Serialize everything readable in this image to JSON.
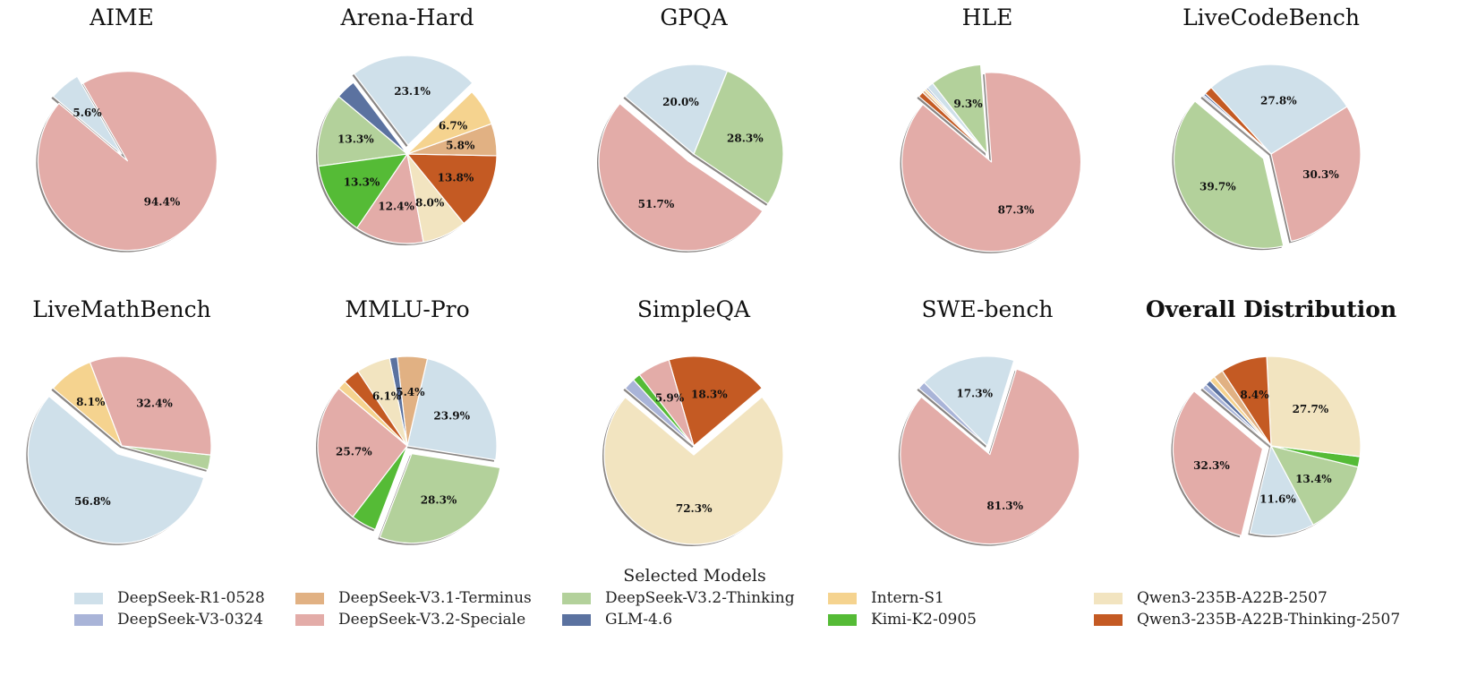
{
  "chart_data": {
    "type": "pie",
    "legend": {
      "title": "Selected Models",
      "placement": "bottom",
      "entries": [
        {
          "name": "DeepSeek-R1-0528",
          "color": "#cfe0ea"
        },
        {
          "name": "DeepSeek-V3-0324",
          "color": "#a9b4d8"
        },
        {
          "name": "DeepSeek-V3.1-Terminus",
          "color": "#e1b183"
        },
        {
          "name": "DeepSeek-V3.2-Speciale",
          "color": "#e3aca8"
        },
        {
          "name": "DeepSeek-V3.2-Thinking",
          "color": "#b3d19b"
        },
        {
          "name": "GLM-4.6",
          "color": "#5b72a0"
        },
        {
          "name": "Intern-S1",
          "color": "#f5d38f"
        },
        {
          "name": "Kimi-K2-0905",
          "color": "#55bb36"
        },
        {
          "name": "Qwen3-235B-A22B-2507",
          "color": "#f2e4c0"
        },
        {
          "name": "Qwen3-235B-A22B-Thinking-2507",
          "color": "#c45a23"
        }
      ]
    },
    "label_format": "percent, 1 decimal, shown for slices >= 5%",
    "exploded": "largest slice",
    "shadow": true,
    "pies": [
      {
        "title": "AIME",
        "slices": [
          {
            "model": "DeepSeek-V3.2-Speciale",
            "value": 94.4
          },
          {
            "model": "DeepSeek-R1-0528",
            "value": 5.6
          }
        ]
      },
      {
        "title": "Arena-Hard",
        "slices": [
          {
            "model": "DeepSeek-V3.2-Thinking",
            "value": 13.3
          },
          {
            "model": "Kimi-K2-0905",
            "value": 13.3
          },
          {
            "model": "DeepSeek-V3.2-Speciale",
            "value": 12.4
          },
          {
            "model": "Qwen3-235B-A22B-2507",
            "value": 8.0
          },
          {
            "model": "Qwen3-235B-A22B-Thinking-2507",
            "value": 13.8
          },
          {
            "model": "DeepSeek-V3.1-Terminus",
            "value": 5.8
          },
          {
            "model": "Intern-S1",
            "value": 6.7
          },
          {
            "model": "DeepSeek-R1-0528",
            "value": 23.1
          },
          {
            "model": "GLM-4.6",
            "value": 3.6
          }
        ]
      },
      {
        "title": "GPQA",
        "slices": [
          {
            "model": "DeepSeek-V3.2-Speciale",
            "value": 51.7
          },
          {
            "model": "DeepSeek-V3.2-Thinking",
            "value": 28.3
          },
          {
            "model": "DeepSeek-R1-0528",
            "value": 20.0
          }
        ]
      },
      {
        "title": "HLE",
        "slices": [
          {
            "model": "DeepSeek-V3.2-Speciale",
            "value": 87.3
          },
          {
            "model": "DeepSeek-V3.2-Thinking",
            "value": 9.3
          },
          {
            "model": "DeepSeek-R1-0528",
            "value": 1.2
          },
          {
            "model": "GLM-4.6",
            "value": 0.3
          },
          {
            "model": "Intern-S1",
            "value": 0.4
          },
          {
            "model": "DeepSeek-V3.1-Terminus",
            "value": 0.5
          },
          {
            "model": "Qwen3-235B-A22B-Thinking-2507",
            "value": 1.0
          }
        ]
      },
      {
        "title": "LiveCodeBench",
        "slices": [
          {
            "model": "DeepSeek-V3.2-Thinking",
            "value": 39.7
          },
          {
            "model": "DeepSeek-V3.2-Speciale",
            "value": 30.3
          },
          {
            "model": "DeepSeek-R1-0528",
            "value": 27.8
          },
          {
            "model": "Qwen3-235B-A22B-Thinking-2507",
            "value": 1.5
          },
          {
            "model": "GLM-4.6",
            "value": 0.4
          },
          {
            "model": "DeepSeek-V3-0324",
            "value": 0.3
          }
        ]
      },
      {
        "title": "LiveMathBench",
        "slices": [
          {
            "model": "DeepSeek-R1-0528",
            "value": 56.8
          },
          {
            "model": "DeepSeek-V3.2-Thinking",
            "value": 2.7
          },
          {
            "model": "DeepSeek-V3.2-Speciale",
            "value": 32.4
          },
          {
            "model": "Intern-S1",
            "value": 8.1
          }
        ]
      },
      {
        "title": "MMLU-Pro",
        "slices": [
          {
            "model": "DeepSeek-V3.2-Speciale",
            "value": 25.7
          },
          {
            "model": "Kimi-K2-0905",
            "value": 4.6
          },
          {
            "model": "DeepSeek-V3.2-Thinking",
            "value": 28.3
          },
          {
            "model": "DeepSeek-R1-0528",
            "value": 23.9
          },
          {
            "model": "DeepSeek-V3.1-Terminus",
            "value": 5.4
          },
          {
            "model": "GLM-4.6",
            "value": 1.4
          },
          {
            "model": "Qwen3-235B-A22B-2507",
            "value": 6.1
          },
          {
            "model": "Qwen3-235B-A22B-Thinking-2507",
            "value": 3.0
          },
          {
            "model": "Intern-S1",
            "value": 1.6
          }
        ]
      },
      {
        "title": "SimpleQA",
        "slices": [
          {
            "model": "Qwen3-235B-A22B-2507",
            "value": 72.3
          },
          {
            "model": "Qwen3-235B-A22B-Thinking-2507",
            "value": 18.3
          },
          {
            "model": "DeepSeek-V3.2-Speciale",
            "value": 5.9
          },
          {
            "model": "Kimi-K2-0905",
            "value": 1.4
          },
          {
            "model": "DeepSeek-V3-0324",
            "value": 2.1
          }
        ]
      },
      {
        "title": "SWE-bench",
        "slices": [
          {
            "model": "DeepSeek-V3.2-Speciale",
            "value": 81.3
          },
          {
            "model": "DeepSeek-R1-0528",
            "value": 17.3
          },
          {
            "model": "DeepSeek-V3-0324",
            "value": 1.4
          }
        ]
      },
      {
        "title": "Overall Distribution",
        "bold": true,
        "slices": [
          {
            "model": "DeepSeek-V3.2-Speciale",
            "value": 32.3
          },
          {
            "model": "DeepSeek-R1-0528",
            "value": 11.6
          },
          {
            "model": "DeepSeek-V3.2-Thinking",
            "value": 13.4
          },
          {
            "model": "Kimi-K2-0905",
            "value": 1.9
          },
          {
            "model": "Qwen3-235B-A22B-2507",
            "value": 27.7
          },
          {
            "model": "Qwen3-235B-A22B-Thinking-2507",
            "value": 8.4
          },
          {
            "model": "DeepSeek-V3.1-Terminus",
            "value": 1.8
          },
          {
            "model": "Intern-S1",
            "value": 1.0
          },
          {
            "model": "GLM-4.6",
            "value": 1.0
          },
          {
            "model": "DeepSeek-V3-0324",
            "value": 0.9
          }
        ]
      }
    ]
  }
}
